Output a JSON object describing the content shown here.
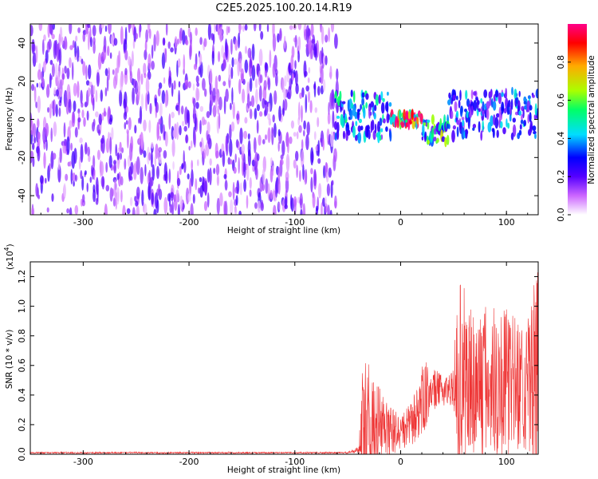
{
  "title": "C2E5.2025.100.20.14.R19",
  "chart_data": [
    {
      "type": "heatmap",
      "xlabel": "Height of straight line (km)",
      "ylabel": "Frequency (Hz)",
      "xlim": [
        -350,
        130
      ],
      "ylim": [
        -50,
        50
      ],
      "xticks": [
        -300,
        -200,
        -100,
        0,
        100
      ],
      "yticks": [
        -40,
        -20,
        0,
        20,
        40
      ],
      "colorbar": {
        "label": "Normalized spectral amplitude",
        "range": [
          0,
          1
        ],
        "ticks": [
          "0.0",
          "0.2",
          "0.4",
          "0.6",
          "0.8"
        ],
        "colormap": [
          "#ffffff",
          "#cc66ff",
          "#5500ff",
          "#0000ff",
          "#00ddff",
          "#00ff66",
          "#aaff00",
          "#ffaa00",
          "#ff0000",
          "#ff0088"
        ]
      },
      "regions": [
        {
          "x": [
            -350,
            -62
          ],
          "f_center": 0,
          "f_halfwidth": 50,
          "amplitude": 0.15
        },
        {
          "x": [
            -62,
            -10
          ],
          "f_center": 2,
          "f_halfwidth": 12,
          "amplitude": 0.35
        },
        {
          "x": [
            -10,
            20
          ],
          "f_center": 0,
          "f_halfwidth": 3,
          "amplitude": 0.85
        },
        {
          "x": [
            20,
            45
          ],
          "f_center": -6,
          "f_halfwidth": 6,
          "amplitude": 0.45
        },
        {
          "x": [
            45,
            130
          ],
          "f_center": 3,
          "f_halfwidth": 12,
          "amplitude": 0.3
        }
      ]
    },
    {
      "type": "line",
      "xlabel": "Height of straight line (km)",
      "ylabel": "SNR (10 * v/v)",
      "multiplier_label": "(x10",
      "multiplier_exp": "4",
      "xlim": [
        -350,
        130
      ],
      "ylim": [
        0,
        1.3
      ],
      "xticks": [
        -300,
        -200,
        -100,
        0,
        100
      ],
      "yticks": [
        0.0,
        0.2,
        0.4,
        0.6,
        0.8,
        1.0,
        1.2
      ],
      "color": "#ee3333",
      "series": [
        {
          "x": [
            -350,
            -300,
            -250,
            -200,
            -150,
            -100,
            -50,
            -40,
            -35,
            -30,
            -20,
            -10,
            0,
            10,
            20,
            30,
            40,
            50,
            55,
            60,
            70,
            80,
            90,
            100,
            110,
            120,
            130
          ],
          "y": [
            0.01,
            0.01,
            0.01,
            0.01,
            0.01,
            0.01,
            0.01,
            0.03,
            0.2,
            0.16,
            0.18,
            0.15,
            0.15,
            0.2,
            0.35,
            0.44,
            0.43,
            0.45,
            0.5,
            0.5,
            0.48,
            0.48,
            0.5,
            0.48,
            0.48,
            0.47,
            0.5
          ],
          "spread": [
            0.005,
            0.005,
            0.005,
            0.005,
            0.005,
            0.005,
            0.005,
            0.02,
            0.55,
            0.35,
            0.3,
            0.18,
            0.12,
            0.15,
            0.25,
            0.15,
            0.1,
            0.12,
            0.7,
            0.65,
            0.55,
            0.55,
            0.55,
            0.5,
            0.45,
            0.45,
            0.8
          ]
        }
      ]
    }
  ]
}
